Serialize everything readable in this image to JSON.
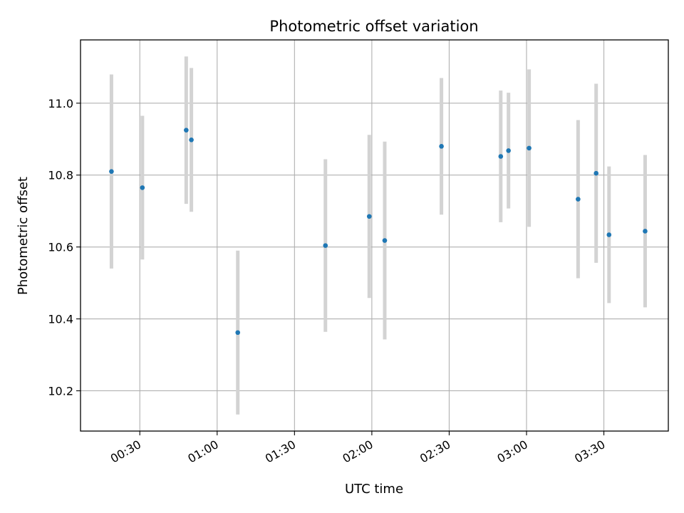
{
  "chart_data": {
    "type": "scatter",
    "title": "Photometric offset variation",
    "xlabel": "UTC time",
    "ylabel": "Photometric offset",
    "x_tick_labels": [
      "00:30",
      "01:00",
      "01:30",
      "02:00",
      "02:30",
      "03:00",
      "03:30"
    ],
    "y_tick_labels": [
      "10.2",
      "10.4",
      "10.6",
      "10.8",
      "11.0"
    ],
    "xlim": [
      "00:07",
      "03:55"
    ],
    "ylim": [
      10.088,
      11.176
    ],
    "grid": true,
    "series": [
      {
        "marker_color": "#1f77b4",
        "errorbar_color": "#d3d3d3",
        "points": [
          {
            "x": "00:19",
            "y": 10.81,
            "err": 0.27
          },
          {
            "x": "00:31",
            "y": 10.765,
            "err": 0.2
          },
          {
            "x": "00:48",
            "y": 10.925,
            "err": 0.205
          },
          {
            "x": "00:50",
            "y": 10.898,
            "err": 0.2
          },
          {
            "x": "01:08",
            "y": 10.362,
            "err": 0.228
          },
          {
            "x": "01:42",
            "y": 10.604,
            "err": 0.24
          },
          {
            "x": "01:59",
            "y": 10.685,
            "err": 0.227
          },
          {
            "x": "02:05",
            "y": 10.618,
            "err": 0.275
          },
          {
            "x": "02:27",
            "y": 10.88,
            "err": 0.19
          },
          {
            "x": "02:50",
            "y": 10.852,
            "err": 0.183
          },
          {
            "x": "02:53",
            "y": 10.868,
            "err": 0.161
          },
          {
            "x": "03:01",
            "y": 10.875,
            "err": 0.219
          },
          {
            "x": "03:20",
            "y": 10.733,
            "err": 0.22
          },
          {
            "x": "03:27",
            "y": 10.805,
            "err": 0.249
          },
          {
            "x": "03:32",
            "y": 10.634,
            "err": 0.19
          },
          {
            "x": "03:46",
            "y": 10.644,
            "err": 0.212
          }
        ]
      }
    ]
  }
}
